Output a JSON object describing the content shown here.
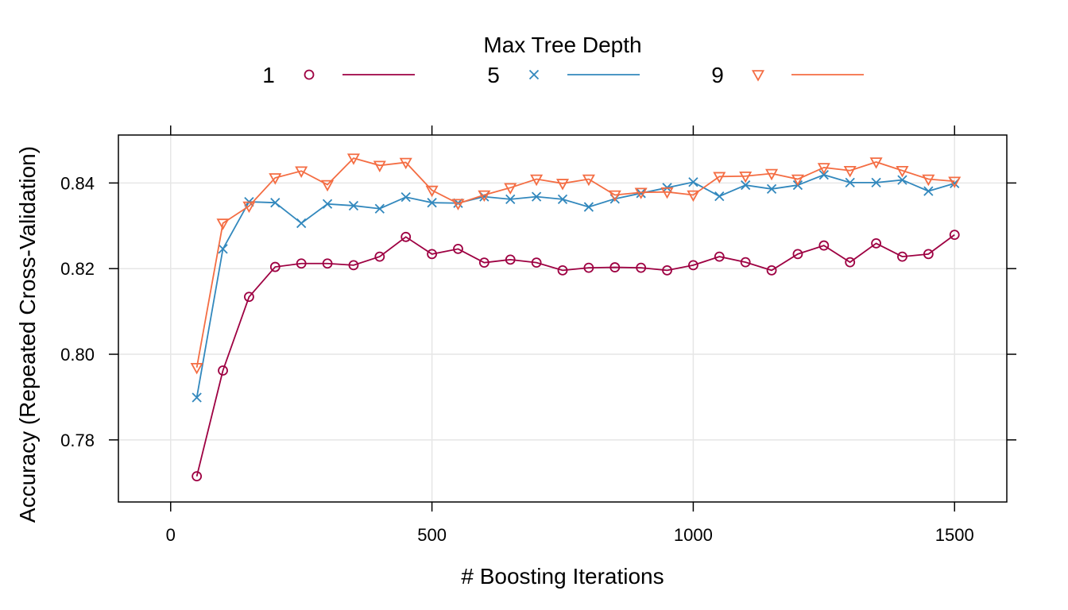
{
  "chart_data": {
    "type": "line",
    "title": "",
    "xlabel": "# Boosting Iterations",
    "ylabel": "Accuracy (Repeated Cross-Validation)",
    "xlim": [
      -100,
      1600
    ],
    "ylim": [
      0.7655,
      0.8512
    ],
    "x_ticks": [
      0,
      500,
      1000,
      1500
    ],
    "y_ticks": [
      0.78,
      0.8,
      0.82,
      0.84
    ],
    "x_tick_labels": [
      "0",
      "500",
      "1000",
      "1500"
    ],
    "y_tick_labels": [
      "0.78",
      "0.80",
      "0.82",
      "0.84"
    ],
    "grid": true,
    "legend": {
      "title": "Max Tree Depth",
      "placement": "top"
    },
    "x": [
      50,
      100,
      150,
      200,
      250,
      300,
      350,
      400,
      450,
      500,
      550,
      600,
      650,
      700,
      750,
      800,
      850,
      900,
      950,
      1000,
      1050,
      1100,
      1150,
      1200,
      1250,
      1300,
      1350,
      1400,
      1450,
      1500
    ],
    "series": [
      {
        "name": "1",
        "color": "#9E0142",
        "marker": "circle",
        "values": [
          0.7715,
          0.7962,
          0.8134,
          0.8204,
          0.8212,
          0.8212,
          0.8208,
          0.8228,
          0.8274,
          0.8234,
          0.8246,
          0.8214,
          0.8221,
          0.8214,
          0.8196,
          0.8202,
          0.8203,
          0.8202,
          0.8196,
          0.8208,
          0.8228,
          0.8215,
          0.8196,
          0.8234,
          0.8254,
          0.8215,
          0.8259,
          0.8228,
          0.8234,
          0.8279
        ]
      },
      {
        "name": "5",
        "color": "#3288BD",
        "marker": "x",
        "values": [
          0.7899,
          0.8246,
          0.8356,
          0.8354,
          0.8306,
          0.8351,
          0.8347,
          0.834,
          0.8367,
          0.8354,
          0.8353,
          0.8368,
          0.8362,
          0.8368,
          0.8362,
          0.8344,
          0.8363,
          0.8376,
          0.8389,
          0.8402,
          0.8369,
          0.8395,
          0.8386,
          0.8395,
          0.8419,
          0.8401,
          0.8401,
          0.8407,
          0.8381,
          0.8399
        ]
      },
      {
        "name": "9",
        "color": "#F46D43",
        "marker": "triangle-down",
        "values": [
          0.7969,
          0.8306,
          0.8346,
          0.8412,
          0.8428,
          0.8396,
          0.8458,
          0.8441,
          0.8448,
          0.8383,
          0.8352,
          0.8372,
          0.8389,
          0.8409,
          0.8399,
          0.8409,
          0.8372,
          0.8378,
          0.8379,
          0.8372,
          0.8415,
          0.8416,
          0.8422,
          0.8409,
          0.8436,
          0.8429,
          0.8449,
          0.8429,
          0.8409,
          0.8404
        ]
      }
    ]
  }
}
